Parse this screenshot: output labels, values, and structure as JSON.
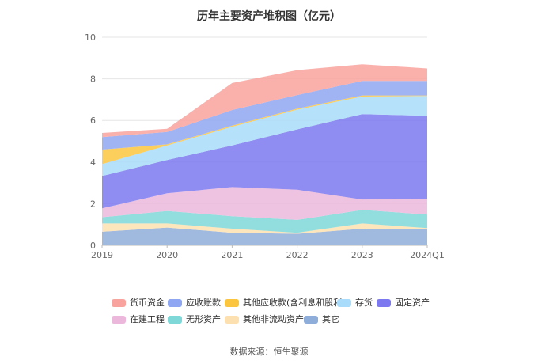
{
  "chart_data": {
    "type": "area",
    "stacked": true,
    "title": "历年主要资产堆积图（亿元）",
    "x": [
      "2019",
      "2020",
      "2021",
      "2022",
      "2023",
      "2024Q1"
    ],
    "yticks": [
      0,
      2,
      4,
      6,
      8,
      10
    ],
    "ylim": [
      0,
      10
    ],
    "grid": true,
    "legend_position": "bottom",
    "series": [
      {
        "name": "其它",
        "color": "#8fadd9",
        "values": [
          0.65,
          0.85,
          0.6,
          0.55,
          0.8,
          0.78
        ]
      },
      {
        "name": "其他非流动资产",
        "color": "#fde0b0",
        "values": [
          0.4,
          0.2,
          0.2,
          0.05,
          0.25,
          0.05
        ]
      },
      {
        "name": "无形资产",
        "color": "#7fd8d8",
        "values": [
          0.3,
          0.6,
          0.6,
          0.62,
          0.65,
          0.65
        ]
      },
      {
        "name": "在建工程",
        "color": "#ebb8dc",
        "values": [
          0.43,
          0.85,
          1.4,
          1.45,
          0.5,
          0.75
        ]
      },
      {
        "name": "固定资产",
        "color": "#7b78f0",
        "values": [
          1.55,
          1.6,
          2.0,
          2.9,
          4.1,
          4.0
        ]
      },
      {
        "name": "存货",
        "color": "#a9dcfa",
        "values": [
          0.57,
          0.7,
          0.9,
          0.95,
          0.85,
          0.95
        ]
      },
      {
        "name": "其他应收款(含利息和股利)",
        "color": "#fcc53e",
        "values": [
          0.7,
          0.05,
          0.05,
          0.05,
          0.05,
          0.02
        ]
      },
      {
        "name": "应收账款",
        "color": "#8fa7f2",
        "values": [
          0.6,
          0.6,
          0.75,
          0.65,
          0.7,
          0.7
        ]
      },
      {
        "name": "货币资金",
        "color": "#f9a39e",
        "values": [
          0.2,
          0.15,
          1.3,
          1.2,
          0.8,
          0.6
        ]
      }
    ]
  },
  "legend_order": [
    [
      "货币资金",
      "应收账款",
      "其他应收款(含利息和股利)",
      "存货",
      "固定资产"
    ],
    [
      "在建工程",
      "无形资产",
      "其他非流动资产",
      "其它"
    ]
  ],
  "source": "数据来源：恒生聚源"
}
